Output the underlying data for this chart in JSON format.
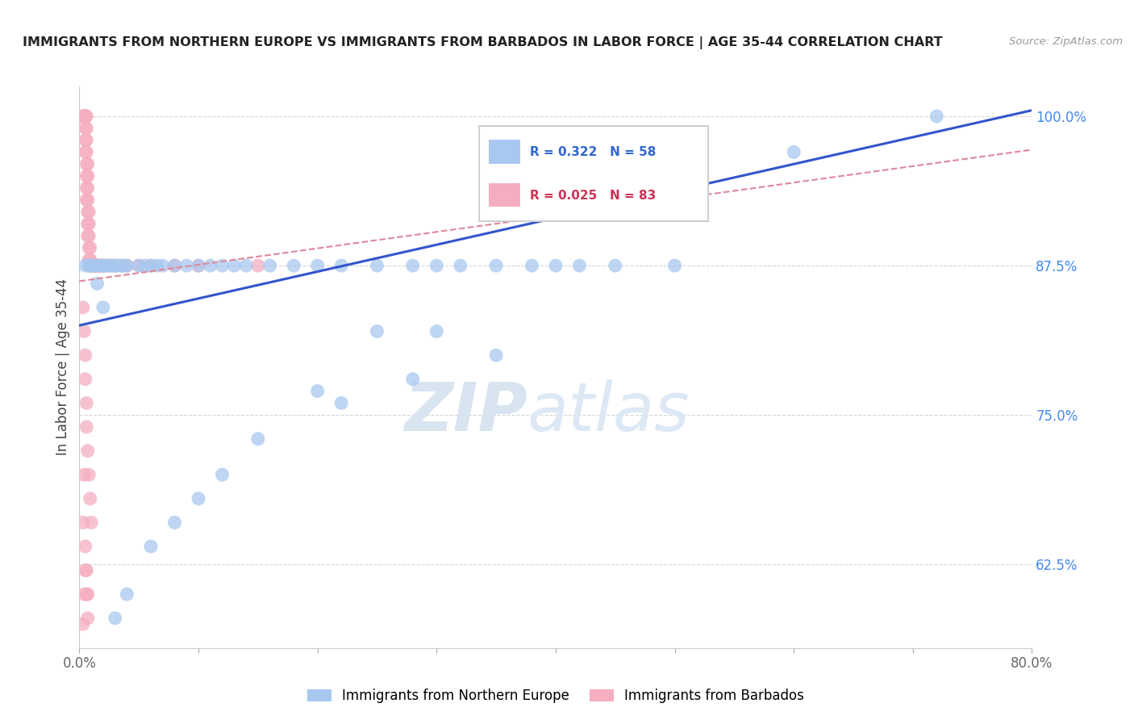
{
  "title": "IMMIGRANTS FROM NORTHERN EUROPE VS IMMIGRANTS FROM BARBADOS IN LABOR FORCE | AGE 35-44 CORRELATION CHART",
  "source": "Source: ZipAtlas.com",
  "ylabel": "In Labor Force | Age 35-44",
  "legend_label_blue": "Immigrants from Northern Europe",
  "legend_label_pink": "Immigrants from Barbados",
  "R_blue": 0.322,
  "N_blue": 58,
  "R_pink": 0.025,
  "N_pink": 83,
  "color_blue": "#a8c8f0",
  "color_pink": "#f5aec0",
  "trendline_blue": "#3355cc",
  "trendline_pink": "#dd8899",
  "xlim": [
    0.0,
    0.8
  ],
  "ylim": [
    0.555,
    1.025
  ],
  "yticks": [
    0.625,
    0.75,
    0.875,
    1.0
  ],
  "ytick_labels": [
    "62.5%",
    "75.0%",
    "87.5%",
    "100.0%"
  ],
  "blue_trend_x": [
    0.0,
    0.8
  ],
  "blue_trend_y": [
    0.825,
    1.005
  ],
  "pink_trend_x": [
    0.0,
    0.8
  ],
  "pink_trend_y": [
    0.862,
    0.972
  ],
  "blue_x": [
    0.005,
    0.008,
    0.01,
    0.012,
    0.015,
    0.018,
    0.02,
    0.022,
    0.025,
    0.028,
    0.03,
    0.032,
    0.035,
    0.038,
    0.04,
    0.05,
    0.055,
    0.06,
    0.065,
    0.07,
    0.08,
    0.09,
    0.1,
    0.11,
    0.12,
    0.13,
    0.14,
    0.16,
    0.18,
    0.2,
    0.22,
    0.25,
    0.28,
    0.3,
    0.32,
    0.35,
    0.38,
    0.4,
    0.25,
    0.3,
    0.2,
    0.15,
    0.12,
    0.1,
    0.08,
    0.06,
    0.04,
    0.03,
    0.02,
    0.015,
    0.42,
    0.35,
    0.28,
    0.22,
    0.6,
    0.72,
    0.5,
    0.45
  ],
  "blue_y": [
    0.875,
    0.875,
    0.875,
    0.875,
    0.875,
    0.875,
    0.875,
    0.875,
    0.875,
    0.875,
    0.875,
    0.875,
    0.875,
    0.875,
    0.875,
    0.875,
    0.875,
    0.875,
    0.875,
    0.875,
    0.875,
    0.875,
    0.875,
    0.875,
    0.875,
    0.875,
    0.875,
    0.875,
    0.875,
    0.875,
    0.875,
    0.875,
    0.875,
    0.875,
    0.875,
    0.875,
    0.875,
    0.875,
    0.82,
    0.82,
    0.77,
    0.73,
    0.7,
    0.68,
    0.66,
    0.64,
    0.6,
    0.58,
    0.84,
    0.86,
    0.875,
    0.8,
    0.78,
    0.76,
    0.97,
    1.0,
    0.875,
    0.875
  ],
  "pink_x": [
    0.003,
    0.003,
    0.004,
    0.004,
    0.004,
    0.005,
    0.005,
    0.005,
    0.005,
    0.005,
    0.005,
    0.005,
    0.005,
    0.006,
    0.006,
    0.006,
    0.006,
    0.006,
    0.006,
    0.006,
    0.006,
    0.007,
    0.007,
    0.007,
    0.007,
    0.007,
    0.007,
    0.007,
    0.008,
    0.008,
    0.008,
    0.008,
    0.008,
    0.009,
    0.009,
    0.009,
    0.009,
    0.01,
    0.01,
    0.01,
    0.012,
    0.012,
    0.012,
    0.014,
    0.014,
    0.015,
    0.015,
    0.015,
    0.018,
    0.018,
    0.02,
    0.02,
    0.022,
    0.025,
    0.028,
    0.03,
    0.035,
    0.04,
    0.05,
    0.06,
    0.08,
    0.1,
    0.15,
    0.003,
    0.004,
    0.005,
    0.005,
    0.006,
    0.006,
    0.007,
    0.008,
    0.009,
    0.01,
    0.005,
    0.006,
    0.007,
    0.004,
    0.003,
    0.005,
    0.006,
    0.004,
    0.007,
    0.003
  ],
  "pink_y": [
    1.0,
    1.0,
    1.0,
    1.0,
    1.0,
    1.0,
    1.0,
    1.0,
    1.0,
    1.0,
    0.99,
    0.98,
    0.97,
    1.0,
    0.99,
    0.98,
    0.97,
    0.96,
    0.95,
    0.94,
    0.93,
    0.96,
    0.95,
    0.94,
    0.93,
    0.92,
    0.91,
    0.9,
    0.92,
    0.91,
    0.9,
    0.89,
    0.88,
    0.89,
    0.88,
    0.875,
    0.875,
    0.875,
    0.875,
    0.875,
    0.875,
    0.875,
    0.875,
    0.875,
    0.875,
    0.875,
    0.875,
    0.875,
    0.875,
    0.875,
    0.875,
    0.875,
    0.875,
    0.875,
    0.875,
    0.875,
    0.875,
    0.875,
    0.875,
    0.875,
    0.875,
    0.875,
    0.875,
    0.84,
    0.82,
    0.8,
    0.78,
    0.76,
    0.74,
    0.72,
    0.7,
    0.68,
    0.66,
    0.64,
    0.62,
    0.6,
    0.7,
    0.66,
    0.62,
    0.6,
    0.6,
    0.58,
    0.575
  ]
}
